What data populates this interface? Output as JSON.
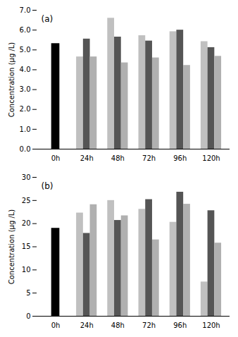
{
  "chart_data": [
    {
      "type": "bar",
      "annotations": [
        "(a)"
      ],
      "ylabel": "Concentration (μg /L)",
      "categories": [
        "0h",
        "24h",
        "48h",
        "72h",
        "96h",
        "120h"
      ],
      "series": [
        {
          "color": "#000000",
          "values": [
            5.32,
            null,
            null,
            null,
            null,
            null
          ]
        },
        {
          "color": "#c0c0c0",
          "values": [
            null,
            4.65,
            6.6,
            5.72,
            5.92,
            5.42
          ]
        },
        {
          "color": "#555555",
          "values": [
            null,
            5.55,
            5.65,
            5.45,
            6.0,
            5.12
          ]
        },
        {
          "color": "#b0b0b0",
          "values": [
            null,
            4.65,
            4.35,
            4.6,
            4.22,
            4.68
          ]
        }
      ],
      "ylim": [
        0,
        7
      ],
      "yticks": [
        0,
        1,
        2,
        3,
        4,
        5,
        6,
        7
      ],
      "grid": false
    },
    {
      "type": "bar",
      "annotations": [
        "(b)"
      ],
      "ylabel": "Concentration (μg /L)",
      "categories": [
        "0h",
        "24h",
        "48h",
        "72h",
        "96h",
        "120h"
      ],
      "series": [
        {
          "color": "#000000",
          "values": [
            19.0,
            null,
            null,
            null,
            null,
            null
          ]
        },
        {
          "color": "#c0c0c0",
          "values": [
            null,
            22.3,
            25.0,
            23.1,
            20.3,
            7.4
          ]
        },
        {
          "color": "#555555",
          "values": [
            null,
            17.9,
            20.7,
            25.2,
            26.8,
            22.8
          ]
        },
        {
          "color": "#b0b0b0",
          "values": [
            null,
            24.1,
            21.7,
            16.5,
            24.2,
            15.8
          ]
        }
      ],
      "ylim": [
        0,
        30
      ],
      "yticks": [
        0,
        5,
        10,
        15,
        20,
        25,
        30
      ],
      "grid": false
    }
  ]
}
